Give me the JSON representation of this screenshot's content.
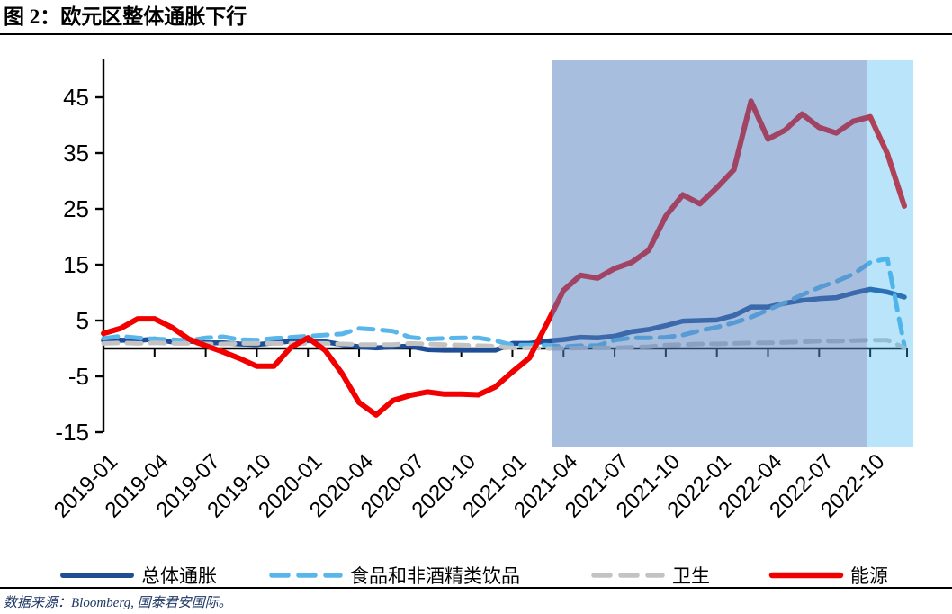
{
  "title": "图 2：欧元区整体通胀下行",
  "source": "数据来源：Bloomberg, 国泰君安国际。",
  "colors": {
    "axis": "#000000",
    "tick_label": "#000000",
    "title": "#000000",
    "source_text": "#1F3864",
    "band_dark": "rgba(86,130,192,0.52)",
    "band_cyan": "rgba(60,180,237,0.36)"
  },
  "chart_data": {
    "type": "line",
    "title": "",
    "xlabel": "",
    "ylabel": "",
    "x_is_monthly_from": "2019-01",
    "x_tick_labels": [
      "2019-01",
      "2019-04",
      "2019-07",
      "2019-10",
      "2020-01",
      "2020-04",
      "2020-07",
      "2020-10",
      "2021-01",
      "2021-04",
      "2021-07",
      "2021-10",
      "2022-01",
      "2022-04",
      "2022-07",
      "2022-10"
    ],
    "y_ticks": [
      45,
      35,
      25,
      15,
      5,
      -5,
      -15
    ],
    "ylim": [
      -15,
      51
    ],
    "grid": false,
    "legend_position": "bottom",
    "series": [
      {
        "key": "total",
        "name": "总体通胀",
        "color": "#1F4E96",
        "style": "solid",
        "width": 5.5,
        "values": [
          1.4,
          1.5,
          1.4,
          1.7,
          1.2,
          1.3,
          1.0,
          1.0,
          0.8,
          0.7,
          1.0,
          1.3,
          1.4,
          1.2,
          0.7,
          0.3,
          0.1,
          0.3,
          0.4,
          -0.2,
          -0.3,
          -0.3,
          -0.3,
          -0.3,
          0.9,
          0.9,
          1.3,
          1.6,
          2.0,
          1.9,
          2.2,
          3.0,
          3.4,
          4.1,
          4.9,
          5.0,
          5.1,
          5.9,
          7.4,
          7.4,
          8.1,
          8.6,
          8.9,
          9.1,
          9.9,
          10.6,
          10.1,
          9.2
        ]
      },
      {
        "key": "food",
        "name": "食品和非酒精类饮品",
        "color": "#58B6EA",
        "style": "dashed",
        "width": 5,
        "values": [
          1.8,
          2.2,
          1.9,
          1.7,
          1.6,
          1.4,
          1.9,
          2.1,
          1.6,
          1.5,
          1.8,
          2.0,
          2.2,
          2.4,
          2.6,
          3.6,
          3.4,
          3.1,
          2.0,
          1.7,
          1.8,
          1.9,
          1.9,
          1.4,
          0.6,
          0.6,
          0.6,
          0.3,
          0.5,
          0.5,
          1.5,
          1.9,
          1.9,
          2.0,
          2.4,
          3.2,
          3.8,
          4.6,
          5.6,
          6.9,
          8.2,
          9.6,
          10.9,
          12.0,
          13.3,
          15.4,
          16.1,
          0.5
        ]
      },
      {
        "key": "health",
        "name": "卫生",
        "color": "#C3C3C3",
        "style": "dashed",
        "width": 5,
        "values": [
          0.9,
          1.0,
          0.9,
          1.0,
          0.9,
          0.9,
          0.8,
          0.8,
          0.9,
          0.9,
          0.9,
          0.9,
          0.9,
          0.9,
          0.8,
          0.7,
          0.7,
          0.7,
          0.9,
          0.8,
          0.7,
          0.6,
          0.5,
          0.4,
          0.1,
          0.1,
          0.0,
          0.0,
          0.1,
          0.1,
          0.1,
          0.2,
          0.3,
          0.6,
          0.7,
          0.8,
          0.8,
          0.9,
          1.0,
          1.0,
          1.1,
          1.2,
          1.3,
          1.3,
          1.4,
          1.5,
          1.5,
          0.1
        ]
      },
      {
        "key": "energy",
        "name": "能源",
        "color": "#F20000",
        "style": "solid",
        "width": 6,
        "values": [
          2.7,
          3.6,
          5.3,
          5.3,
          3.8,
          1.7,
          0.5,
          -0.6,
          -1.8,
          -3.2,
          -3.2,
          0.2,
          1.9,
          -0.3,
          -4.5,
          -9.7,
          -11.9,
          -9.3,
          -8.4,
          -7.8,
          -8.2,
          -8.2,
          -8.3,
          -6.9,
          -4.2,
          -1.7,
          4.3,
          10.4,
          13.1,
          12.6,
          14.3,
          15.4,
          17.6,
          23.7,
          27.5,
          25.9,
          28.8,
          32.0,
          44.3,
          37.5,
          39.1,
          42.0,
          39.6,
          38.6,
          40.7,
          41.5,
          34.9,
          25.5
        ]
      }
    ],
    "highlight_regions": [
      {
        "key": "band-dark",
        "from_month": 26.35,
        "to_month": 44.78,
        "color": "rgba(86,130,192,0.52)"
      },
      {
        "key": "band-cyan",
        "from_month": 44.78,
        "to_month": 47.53,
        "color": "rgba(60,180,237,0.36)"
      }
    ]
  },
  "legend": {
    "items": [
      "总体通胀",
      "食品和非酒精类饮品",
      "卫生",
      "能源"
    ]
  }
}
